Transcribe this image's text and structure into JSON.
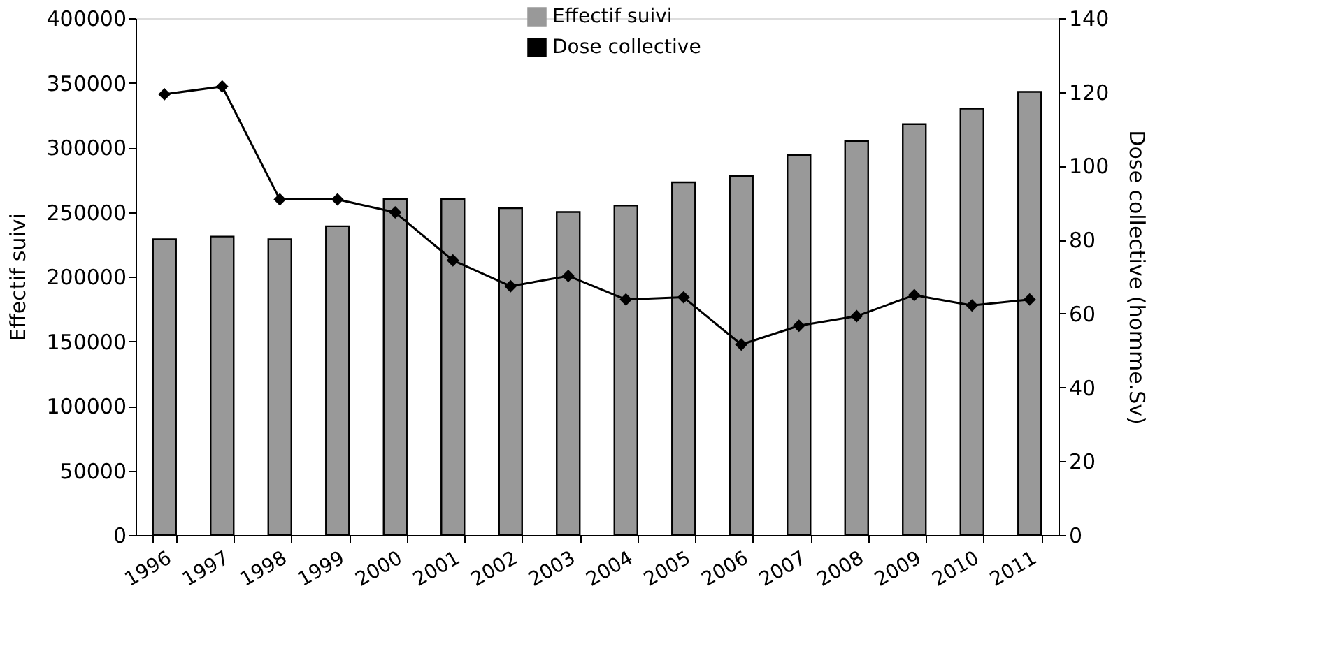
{
  "chart_data": {
    "type": "bar",
    "categories": [
      "1996",
      "1997",
      "1998",
      "1999",
      "2000",
      "2001",
      "2002",
      "2003",
      "2004",
      "2005",
      "2006",
      "2007",
      "2008",
      "2009",
      "2010",
      "2011"
    ],
    "ylabel": "Effectif suivi",
    "y2label": "Dose collective (homme.Sv)",
    "ylim": [
      0,
      400000
    ],
    "yticks": [
      0,
      50000,
      100000,
      150000,
      200000,
      250000,
      300000,
      350000,
      400000
    ],
    "y2lim": [
      0,
      140
    ],
    "y2ticks": [
      0,
      20,
      40,
      60,
      80,
      100,
      120,
      140
    ],
    "series": [
      {
        "name": "Effectif suivi",
        "color": "#999999",
        "values": [
          229000,
          231000,
          229000,
          239000,
          260000,
          260000,
          253000,
          250000,
          255000,
          273000,
          278000,
          294000,
          305000,
          318000,
          330000,
          343000
        ]
      },
      {
        "name": "Dose collective",
        "type": "line",
        "axis": "y2",
        "color": "#000000",
        "marker": "diamond",
        "values": [
          119.4,
          121.5,
          90.9,
          90.9,
          87.4,
          74.4,
          67.4,
          70.2,
          63.8,
          64.4,
          51.6,
          56.7,
          59.3,
          65.0,
          62.2,
          63.8
        ]
      }
    ],
    "legend": "top",
    "grid": false
  }
}
